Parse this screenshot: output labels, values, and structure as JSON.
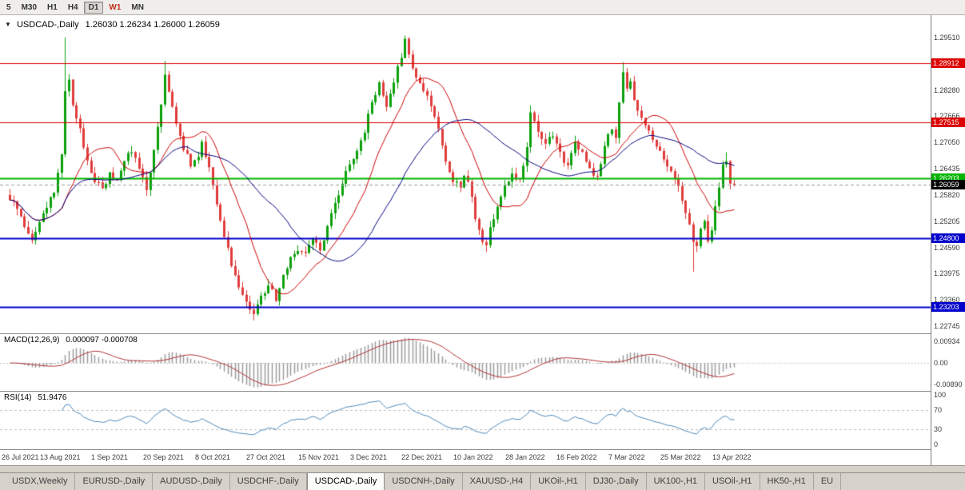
{
  "toolbar": {
    "timeframes": [
      {
        "label": "5",
        "state": "normal"
      },
      {
        "label": "M30",
        "state": "normal"
      },
      {
        "label": "H1",
        "state": "normal"
      },
      {
        "label": "H4",
        "state": "normal"
      },
      {
        "label": "D1",
        "state": "active"
      },
      {
        "label": "W1",
        "state": "highlight"
      },
      {
        "label": "MN",
        "state": "normal"
      }
    ]
  },
  "main_chart": {
    "collapse_icon": "▼",
    "title": "USDCAD-,Daily",
    "ohlc": "1.26030 1.26234 1.26000 1.26059"
  },
  "macd_panel": {
    "label": "MACD(12,26,9)",
    "values": "0.000097 -0.000708",
    "axis_top": "0.00934",
    "axis_zero": "0.00",
    "axis_bottom": "-0.00890"
  },
  "rsi_panel": {
    "label": "RSI(14)",
    "value": "51.9476",
    "levels": [
      100,
      70,
      30,
      0
    ]
  },
  "price_axis": {
    "ticks": [
      "1.29510",
      "1.28280",
      "1.27666",
      "1.27050",
      "1.26435",
      "1.25820",
      "1.25205",
      "1.24590",
      "1.23975",
      "1.23360",
      "1.22745"
    ],
    "levels": [
      {
        "label": "1.28912",
        "value": 1.28912,
        "color": "#dd0000",
        "text_color": "#ffffff",
        "line_width": 1,
        "style": "solid"
      },
      {
        "label": "1.27515",
        "value": 1.27515,
        "color": "#dd0000",
        "text_color": "#ffffff",
        "line_width": 1,
        "style": "solid"
      },
      {
        "label": "1.26203",
        "value": 1.26203,
        "color": "#00b400",
        "text_color": "#ffffff",
        "line_width": 2,
        "style": "solid"
      },
      {
        "label": "1.26059",
        "value": 1.26059,
        "color": "#000000",
        "text_color": "#ffffff",
        "line_width": 1,
        "style": "dashed"
      },
      {
        "label": "1.24800",
        "value": 1.248,
        "color": "#0000cc",
        "text_color": "#ffffff",
        "line_width": 2,
        "style": "solid"
      },
      {
        "label": "1.23203",
        "value": 1.23203,
        "color": "#0000cc",
        "text_color": "#ffffff",
        "line_width": 2,
        "style": "solid"
      }
    ]
  },
  "date_axis": [
    "26 Jul 2021",
    "13 Aug 2021",
    "1 Sep 2021",
    "20 Sep 2021",
    "8 Oct 2021",
    "27 Oct 2021",
    "15 Nov 2021",
    "3 Dec 2021",
    "22 Dec 2021",
    "10 Jan 2022",
    "28 Jan 2022",
    "16 Feb 2022",
    "7 Mar 2022",
    "25 Mar 2022",
    "13 Apr 2022"
  ],
  "tabs": [
    "USDX,Weekly",
    "EURUSD-,Daily",
    "AUDUSD-,Daily",
    "USDCHF-,Daily",
    "USDCAD-,Daily",
    "USDCNH-,Daily",
    "XAUUSD-,H4",
    "UKOil-,H1",
    "DJ30-,Daily",
    "UK100-,H1",
    "USOil-,H1",
    "HK50-,H1",
    "EU"
  ],
  "active_tab": "USDCAD-,Daily",
  "chart_data": {
    "type": "candlestick",
    "symbol": "USDCAD-",
    "timeframe": "Daily",
    "bars_visible": 197,
    "x_labels_every": 14,
    "last_close": 1.26059,
    "ylim_main": [
      1.22577,
      1.30035
    ],
    "up_color": "#0ca00c",
    "down_color": "#e03c3c",
    "ma_fast": {
      "period": 14,
      "color": "#cc0000"
    },
    "ma_slow": {
      "period": 34,
      "color": "#000080"
    },
    "macd": {
      "fast": 12,
      "slow": 26,
      "signal": 9,
      "hist_color": "#9c9c9c",
      "signal_color": "#b03030"
    },
    "rsi": {
      "period": 14,
      "color": "#4a86b8",
      "upper": 70,
      "lower": 30
    },
    "close_anchors": [
      [
        0,
        1.2575
      ],
      [
        2,
        1.2548
      ],
      [
        4,
        1.2512
      ],
      [
        6,
        1.2482
      ],
      [
        8,
        1.2515
      ],
      [
        10,
        1.2552
      ],
      [
        12,
        1.2588
      ],
      [
        14,
        1.2672
      ],
      [
        15,
        1.2832
      ],
      [
        16,
        1.2848
      ],
      [
        17,
        1.2795
      ],
      [
        19,
        1.2732
      ],
      [
        21,
        1.2668
      ],
      [
        23,
        1.2612
      ],
      [
        25,
        1.2598
      ],
      [
        27,
        1.2628
      ],
      [
        29,
        1.2618
      ],
      [
        31,
        1.2662
      ],
      [
        33,
        1.2688
      ],
      [
        35,
        1.2638
      ],
      [
        37,
        1.2596
      ],
      [
        39,
        1.2682
      ],
      [
        41,
        1.2788
      ],
      [
        42,
        1.2862
      ],
      [
        43,
        1.2822
      ],
      [
        45,
        1.2752
      ],
      [
        47,
        1.2692
      ],
      [
        49,
        1.2652
      ],
      [
        51,
        1.2668
      ],
      [
        52,
        1.2702
      ],
      [
        54,
        1.2648
      ],
      [
        56,
        1.2562
      ],
      [
        58,
        1.2488
      ],
      [
        60,
        1.2422
      ],
      [
        62,
        1.2372
      ],
      [
        64,
        1.2332
      ],
      [
        66,
        1.2302
      ],
      [
        68,
        1.2342
      ],
      [
        70,
        1.2372
      ],
      [
        72,
        1.2335
      ],
      [
        74,
        1.2392
      ],
      [
        76,
        1.2432
      ],
      [
        78,
        1.2455
      ],
      [
        80,
        1.2442
      ],
      [
        82,
        1.2478
      ],
      [
        84,
        1.2452
      ],
      [
        86,
        1.2512
      ],
      [
        88,
        1.2562
      ],
      [
        90,
        1.2612
      ],
      [
        92,
        1.2652
      ],
      [
        94,
        1.2682
      ],
      [
        96,
        1.2732
      ],
      [
        98,
        1.2802
      ],
      [
        100,
        1.2842
      ],
      [
        102,
        1.2792
      ],
      [
        104,
        1.2852
      ],
      [
        106,
        1.2902
      ],
      [
        107,
        1.2948
      ],
      [
        108,
        1.2908
      ],
      [
        110,
        1.2862
      ],
      [
        112,
        1.2828
      ],
      [
        114,
        1.2792
      ],
      [
        116,
        1.2732
      ],
      [
        118,
        1.2662
      ],
      [
        120,
        1.2618
      ],
      [
        122,
        1.2602
      ],
      [
        123,
        1.2632
      ],
      [
        125,
        1.2582
      ],
      [
        126,
        1.2522
      ],
      [
        128,
        1.2478
      ],
      [
        129,
        1.2462
      ],
      [
        130,
        1.2502
      ],
      [
        132,
        1.2558
      ],
      [
        134,
        1.2602
      ],
      [
        136,
        1.2632
      ],
      [
        138,
        1.2615
      ],
      [
        140,
        1.2688
      ],
      [
        141,
        1.2772
      ],
      [
        143,
        1.2732
      ],
      [
        145,
        1.2698
      ],
      [
        147,
        1.2725
      ],
      [
        149,
        1.2678
      ],
      [
        151,
        1.2645
      ],
      [
        153,
        1.2702
      ],
      [
        155,
        1.2682
      ],
      [
        157,
        1.2638
      ],
      [
        159,
        1.2622
      ],
      [
        161,
        1.2695
      ],
      [
        163,
        1.2742
      ],
      [
        164,
        1.2712
      ],
      [
        165,
        1.2792
      ],
      [
        166,
        1.2872
      ],
      [
        167,
        1.2828
      ],
      [
        168,
        1.2845
      ],
      [
        169,
        1.2798
      ],
      [
        171,
        1.2762
      ],
      [
        173,
        1.2738
      ],
      [
        175,
        1.2698
      ],
      [
        177,
        1.2662
      ],
      [
        179,
        1.2638
      ],
      [
        181,
        1.2598
      ],
      [
        183,
        1.2542
      ],
      [
        184,
        1.2508
      ],
      [
        185,
        1.2478
      ],
      [
        186,
        1.2468
      ],
      [
        187,
        1.2498
      ],
      [
        188,
        1.2525
      ],
      [
        189,
        1.2478
      ],
      [
        190,
        1.2505
      ],
      [
        191,
        1.2552
      ],
      [
        192,
        1.2602
      ],
      [
        193,
        1.2648
      ],
      [
        194,
        1.2662
      ],
      [
        195,
        1.2612
      ],
      [
        196,
        1.26059
      ]
    ],
    "wick_overrides": [
      [
        6,
        "low",
        1.2468
      ],
      [
        15,
        "high",
        1.2951
      ],
      [
        42,
        "high",
        1.2896
      ],
      [
        66,
        "low",
        1.2288
      ],
      [
        107,
        "high",
        1.2956
      ],
      [
        129,
        "low",
        1.2448
      ],
      [
        141,
        "high",
        1.2792
      ],
      [
        166,
        "high",
        1.2893
      ],
      [
        185,
        "low",
        1.2402
      ],
      [
        194,
        "high",
        1.2682
      ]
    ]
  }
}
